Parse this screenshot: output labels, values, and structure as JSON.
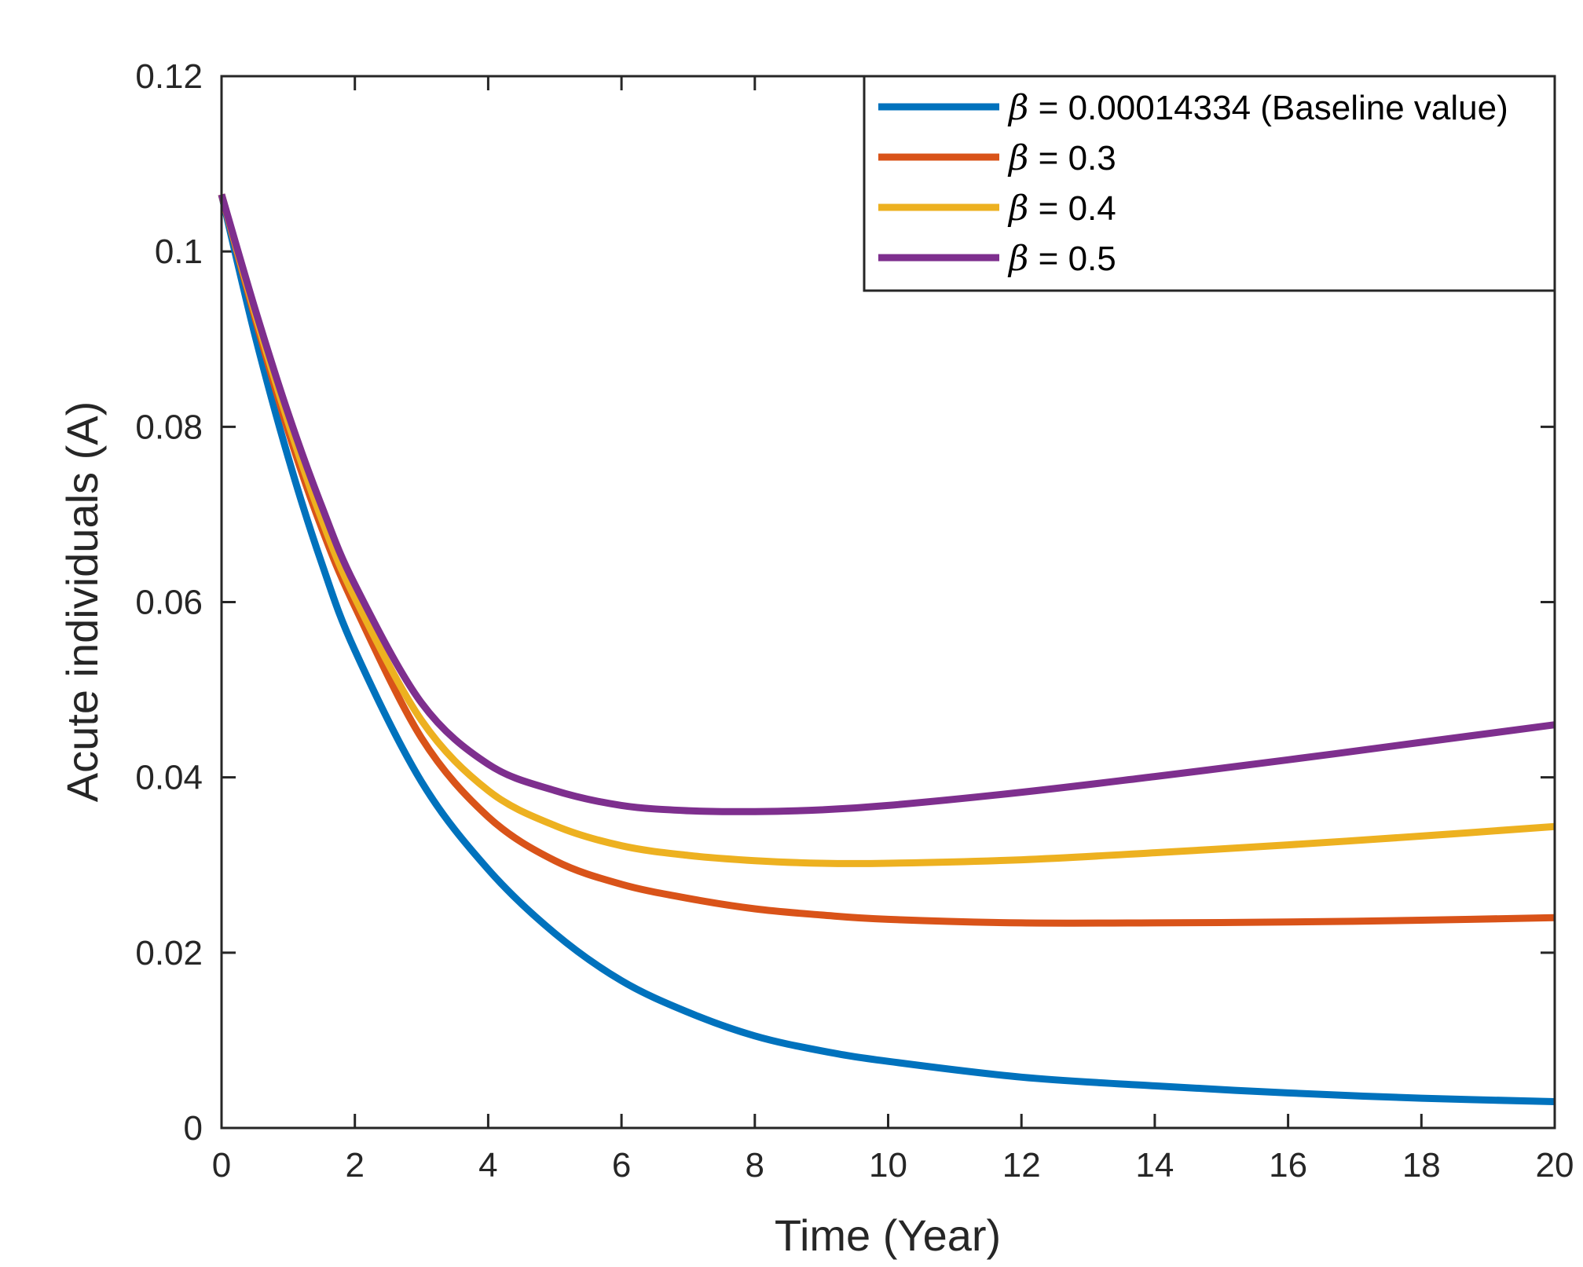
{
  "chart_data": {
    "type": "line",
    "title": "",
    "xlabel": "Time (Year)",
    "ylabel": "Acute individuals (A)",
    "xlim": [
      0,
      20
    ],
    "ylim": [
      0,
      0.12
    ],
    "x_ticks": [
      0,
      2,
      4,
      6,
      8,
      10,
      12,
      14,
      16,
      18,
      20
    ],
    "x_tick_labels": [
      "0",
      "2",
      "4",
      "6",
      "8",
      "10",
      "12",
      "14",
      "16",
      "18",
      "20"
    ],
    "y_ticks": [
      0,
      0.02,
      0.04,
      0.06,
      0.08,
      0.1,
      0.12
    ],
    "y_tick_labels": [
      "0",
      "0.02",
      "0.04",
      "0.06",
      "0.08",
      "0.1",
      "0.12"
    ],
    "grid": false,
    "legend_position": "top-right",
    "series": [
      {
        "name": "β = 0.00014334 (Baseline value)",
        "symbol": "β",
        "label_rest": " = 0.00014334 (Baseline value)",
        "color": "#0072bd",
        "x": [
          0,
          0.5,
          1,
          1.5,
          2,
          3,
          4,
          5,
          6,
          7,
          8,
          9,
          10,
          12,
          14,
          16,
          18,
          20
        ],
        "y": [
          0.1065,
          0.0905,
          0.0765,
          0.0645,
          0.0545,
          0.0395,
          0.0295,
          0.0222,
          0.0168,
          0.0132,
          0.0105,
          0.0088,
          0.0076,
          0.0058,
          0.0048,
          0.004,
          0.0034,
          0.003
        ]
      },
      {
        "name": "β = 0.3",
        "symbol": "β",
        "label_rest": " = 0.3",
        "color": "#d95319",
        "x": [
          0,
          0.5,
          1,
          1.5,
          2,
          3,
          4,
          5,
          6,
          7,
          8,
          9,
          10,
          12,
          14,
          16,
          18,
          20
        ],
        "y": [
          0.1065,
          0.0925,
          0.0795,
          0.0685,
          0.0595,
          0.0445,
          0.0355,
          0.0305,
          0.0278,
          0.0262,
          0.025,
          0.0243,
          0.0238,
          0.0234,
          0.0234,
          0.0235,
          0.0237,
          0.024
        ]
      },
      {
        "name": "β = 0.4",
        "symbol": "β",
        "label_rest": " = 0.4",
        "color": "#edb120",
        "x": [
          0,
          0.5,
          1,
          1.5,
          2,
          3,
          4,
          5,
          6,
          7,
          8,
          9,
          10,
          12,
          14,
          16,
          18,
          20
        ],
        "y": [
          0.1065,
          0.093,
          0.0805,
          0.0695,
          0.0605,
          0.0465,
          0.0385,
          0.0345,
          0.0322,
          0.0311,
          0.0305,
          0.0302,
          0.0302,
          0.0306,
          0.0314,
          0.0323,
          0.0333,
          0.0344
        ]
      },
      {
        "name": "β = 0.5",
        "symbol": "β",
        "label_rest": " = 0.5",
        "color": "#7e2f8e",
        "x": [
          0,
          0.5,
          1,
          1.5,
          2,
          3,
          4,
          5,
          6,
          7,
          8,
          9,
          10,
          12,
          14,
          16,
          18,
          20
        ],
        "y": [
          0.1065,
          0.0935,
          0.0815,
          0.071,
          0.062,
          0.0485,
          0.0415,
          0.0385,
          0.0368,
          0.0362,
          0.0361,
          0.0363,
          0.0368,
          0.0383,
          0.0401,
          0.042,
          0.044,
          0.046
        ]
      }
    ]
  }
}
